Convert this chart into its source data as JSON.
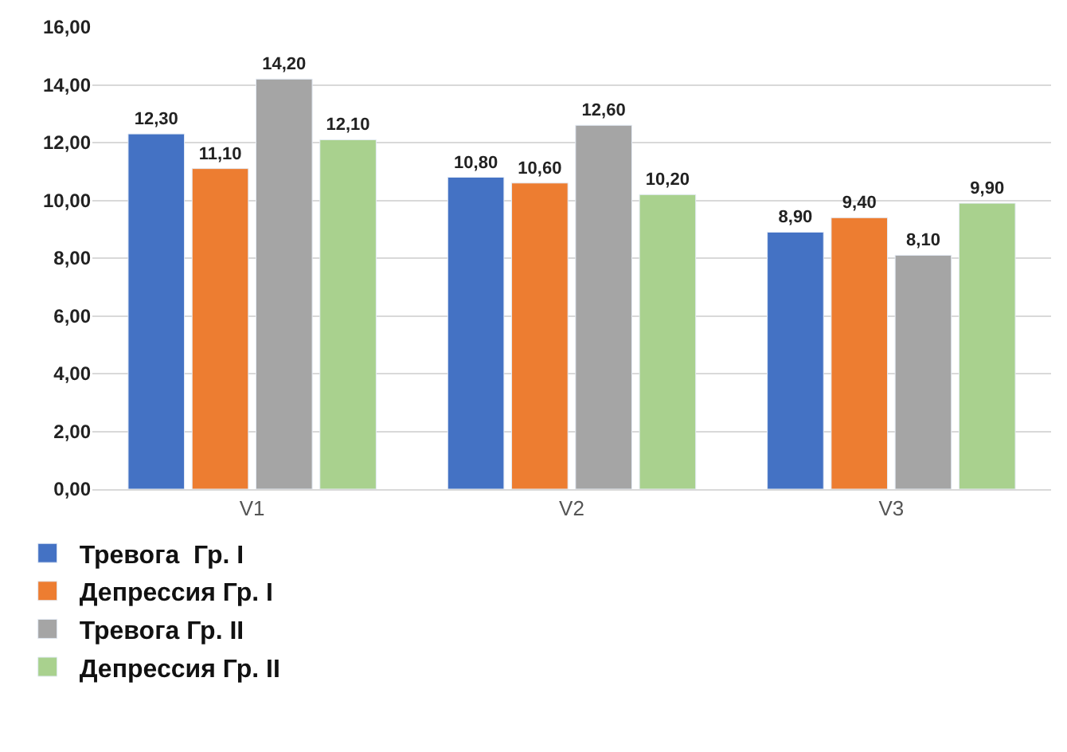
{
  "chart_data": {
    "type": "bar",
    "categories": [
      "V1",
      "V2",
      "V3"
    ],
    "series": [
      {
        "name": "Тревога  Гр. I",
        "color": "#4472c4",
        "values": [
          12.3,
          10.8,
          8.9
        ],
        "value_labels": [
          "12,30",
          "10,80",
          "8,90"
        ]
      },
      {
        "name": "Депрессия Гр. I",
        "color": "#ed7d31",
        "values": [
          11.1,
          10.6,
          9.4
        ],
        "value_labels": [
          "11,10",
          "10,60",
          "9,40"
        ]
      },
      {
        "name": "Тревога Гр. II",
        "color": "#a5a5a5",
        "values": [
          14.2,
          12.6,
          8.1
        ],
        "value_labels": [
          "14,20",
          "12,60",
          "8,10"
        ]
      },
      {
        "name": "Депрессия Гр. II",
        "color": "#a9d18e",
        "values": [
          12.1,
          10.2,
          9.9
        ],
        "value_labels": [
          "12,10",
          "10,20",
          "9,90"
        ]
      }
    ],
    "ylim": [
      0,
      16
    ],
    "yticks": [
      {
        "value": 0,
        "label": "0,00"
      },
      {
        "value": 2,
        "label": "2,00"
      },
      {
        "value": 4,
        "label": "4,00"
      },
      {
        "value": 6,
        "label": "6,00"
      },
      {
        "value": 8,
        "label": "8,00"
      },
      {
        "value": 10,
        "label": "10,00"
      },
      {
        "value": 12,
        "label": "12,00"
      },
      {
        "value": 14,
        "label": "14,00"
      },
      {
        "value": 16,
        "label": "16,00"
      }
    ],
    "grid": "y",
    "legend": "bottom left"
  }
}
